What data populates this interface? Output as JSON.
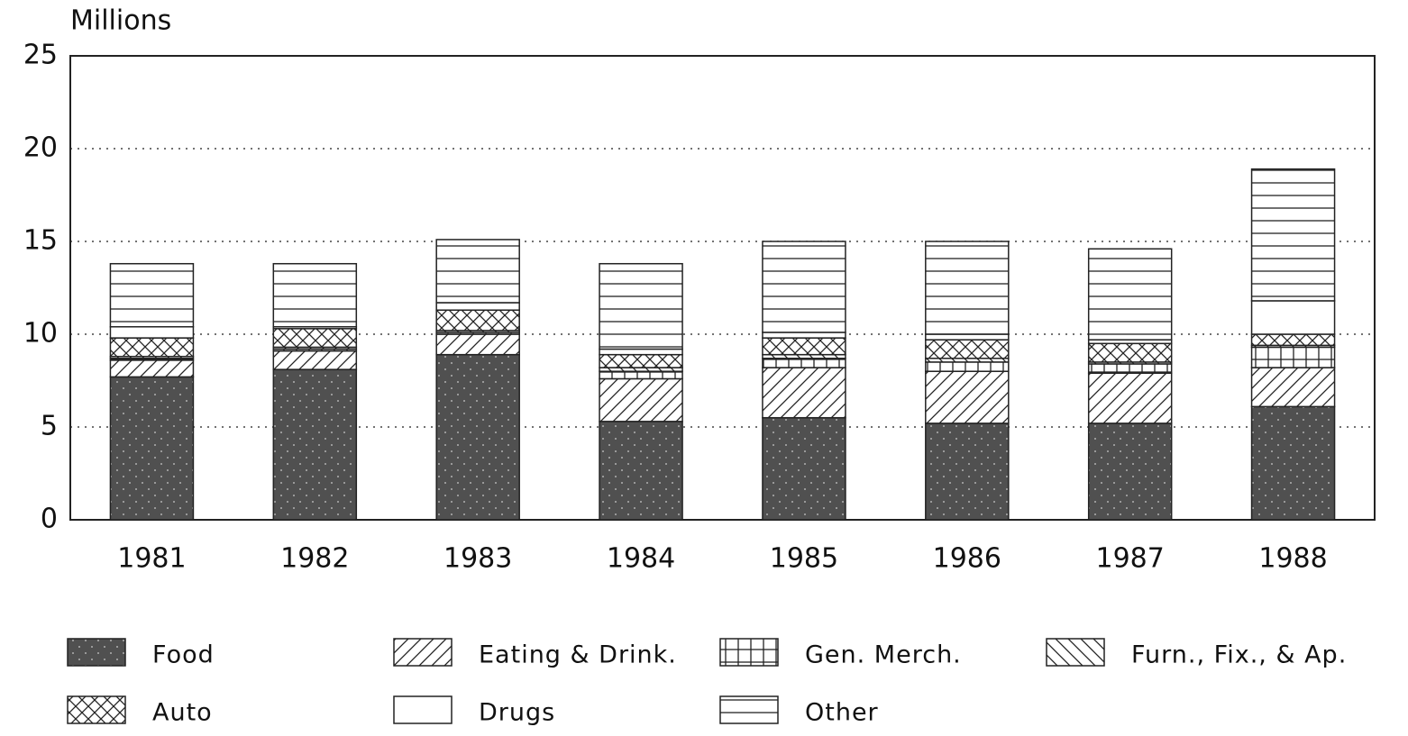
{
  "chart_data": {
    "type": "bar",
    "stacked": true,
    "y_label": "Millions",
    "categories": [
      "1981",
      "1982",
      "1983",
      "1984",
      "1985",
      "1986",
      "1987",
      "1988"
    ],
    "ylim": [
      0,
      25
    ],
    "yticks": [
      0,
      5,
      10,
      15,
      20,
      25
    ],
    "grid": true,
    "series": [
      {
        "name": "Food",
        "color": "#505050",
        "pattern": "dots",
        "values": [
          7.7,
          8.1,
          8.9,
          5.3,
          5.5,
          5.2,
          5.2,
          6.1
        ]
      },
      {
        "name": "Eating & Drink.",
        "color": "#222",
        "pattern": "diagonal",
        "values": [
          0.9,
          1.0,
          1.1,
          2.3,
          2.7,
          2.8,
          2.7,
          2.1
        ]
      },
      {
        "name": "Gen. Merch.",
        "color": "#222",
        "pattern": "grid",
        "values": [
          0.1,
          0.1,
          0.1,
          0.4,
          0.5,
          0.5,
          0.5,
          1.1
        ]
      },
      {
        "name": "Furn., Fix., & Ap.",
        "color": "#222",
        "pattern": "backdiagonal",
        "values": [
          0.1,
          0.1,
          0.1,
          0.2,
          0.2,
          0.2,
          0.1,
          0.1
        ]
      },
      {
        "name": "Auto",
        "color": "#222",
        "pattern": "crosshatch",
        "values": [
          1.0,
          1.0,
          1.1,
          0.7,
          0.9,
          1.0,
          1.0,
          0.6
        ]
      },
      {
        "name": "Drugs",
        "color": "#222",
        "pattern": "none",
        "values": [
          0.6,
          0.1,
          0.4,
          0.3,
          0.3,
          0.3,
          0.2,
          1.8
        ]
      },
      {
        "name": "Other",
        "color": "#222",
        "pattern": "horizontal",
        "values": [
          3.4,
          3.4,
          3.4,
          4.6,
          4.9,
          5.0,
          4.9,
          7.1
        ]
      }
    ]
  }
}
